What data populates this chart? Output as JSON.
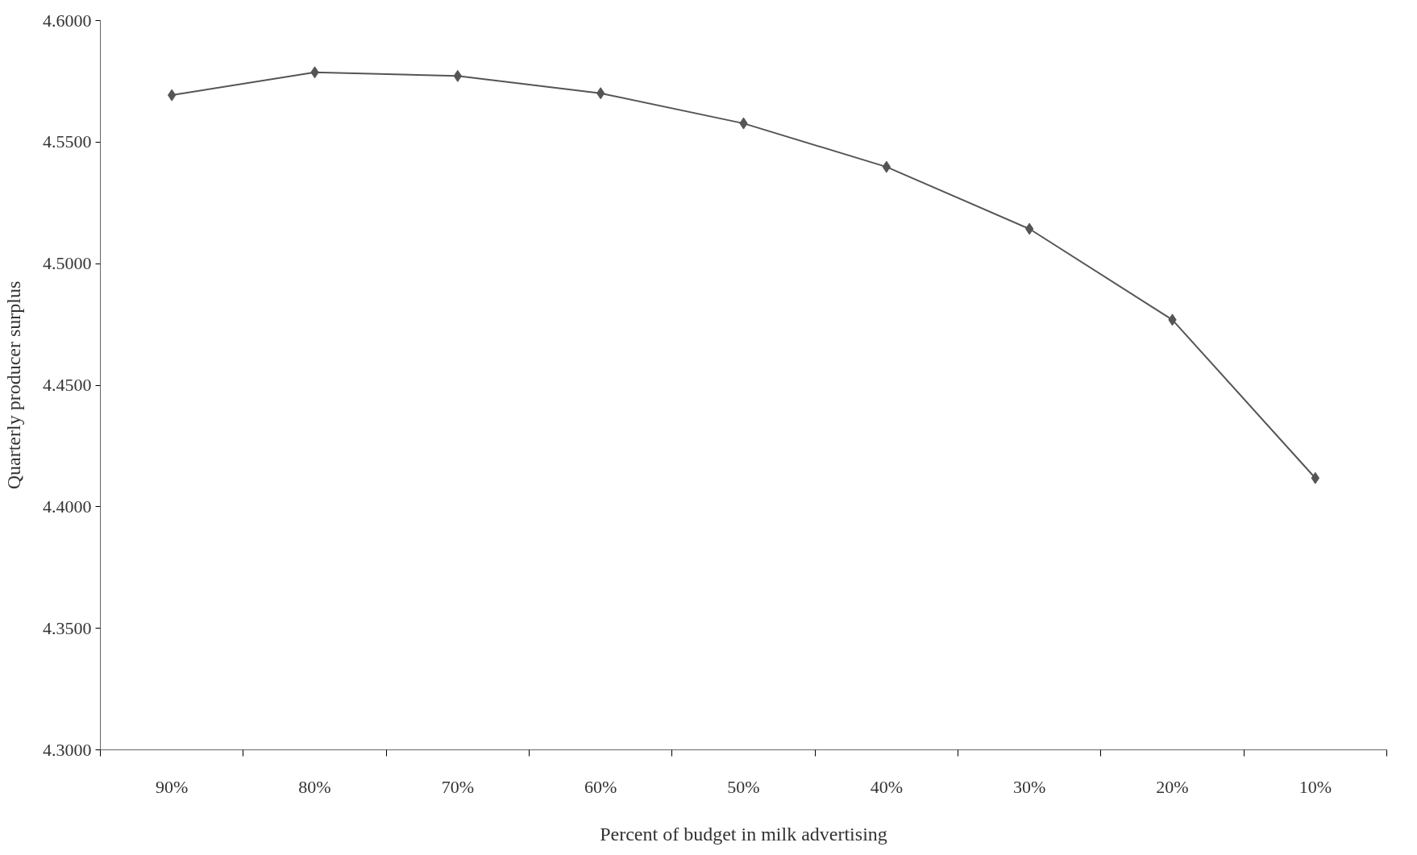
{
  "chart_data": {
    "type": "line",
    "xlabel": "Percent of budget in milk advertising",
    "ylabel": "Quarterly producer surplus",
    "categories": [
      "90%",
      "80%",
      "70%",
      "60%",
      "50%",
      "40%",
      "30%",
      "20%",
      "10%"
    ],
    "series": [
      {
        "color": "#555555",
        "values": [
          4.5693,
          4.5787,
          4.5772,
          4.5701,
          4.5577,
          4.5398,
          4.5143,
          4.4769,
          4.4118
        ]
      }
    ],
    "ylim": [
      4.3,
      4.6
    ],
    "yticks": [
      {
        "value": 4.3,
        "label": "4.3000"
      },
      {
        "value": 4.35,
        "label": "4.3500"
      },
      {
        "value": 4.4,
        "label": "4.4000"
      },
      {
        "value": 4.45,
        "label": "4.4500"
      },
      {
        "value": 4.5,
        "label": "4.5000"
      },
      {
        "value": 4.55,
        "label": "4.5500"
      },
      {
        "value": 4.6,
        "label": "4.6000"
      }
    ],
    "grid": false,
    "marker": "diamond",
    "line_style": "solid"
  }
}
